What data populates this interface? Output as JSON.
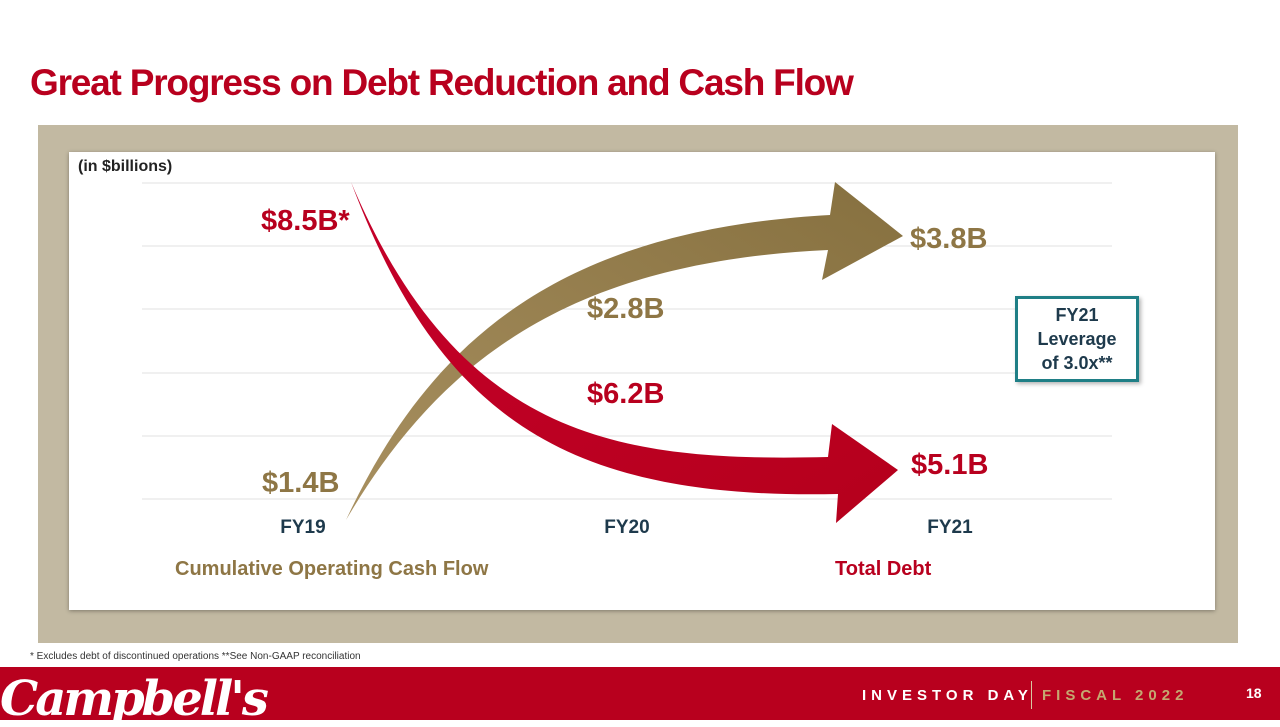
{
  "slide": {
    "title": "Great Progress on Debt Reduction and Cash Flow",
    "units": "(in $billions)",
    "footnote": "*  Excludes debt of discontinued operations  **See Non-GAAP reconciliation",
    "leverage_box": {
      "line1": "FY21",
      "line2": "Leverage",
      "line3": "of 3.0x**"
    },
    "footer": {
      "logo": "Campbell's",
      "event": "INVESTOR DAY",
      "fiscal": "FISCAL 2022",
      "page": "18"
    }
  },
  "chart_data": {
    "type": "line",
    "categories": [
      "FY19",
      "FY20",
      "FY21"
    ],
    "series": [
      {
        "name": "Cumulative Operating Cash Flow",
        "values": [
          1.4,
          2.8,
          3.8
        ],
        "labels": [
          "$1.4B",
          "$2.8B",
          "$3.8B"
        ],
        "color": "#8e7645"
      },
      {
        "name": "Total Debt",
        "values": [
          8.5,
          6.2,
          5.1
        ],
        "labels": [
          "$8.5B*",
          "$6.2B",
          "$5.1B"
        ],
        "color": "#b8001e"
      }
    ],
    "grid": true,
    "legend": "bottom"
  }
}
